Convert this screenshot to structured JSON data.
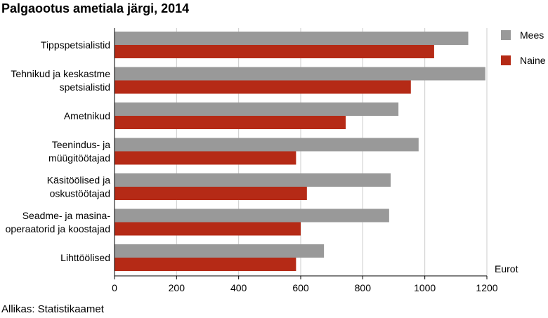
{
  "title": "Palgaootus ametiala järgi, 2014",
  "source": "Allikas: Statistikaamet",
  "colors": {
    "mees": "#999999",
    "naine": "#b52a16",
    "axis": "#000000",
    "grid": "#cccccc"
  },
  "chart_data": {
    "type": "bar",
    "orientation": "horizontal",
    "title": "Palgaootus ametiala järgi, 2014",
    "xlabel": "Eurot",
    "ylabel": "",
    "xlim": [
      0,
      1200
    ],
    "xticks": [
      0,
      200,
      400,
      600,
      800,
      1000,
      1200
    ],
    "grid": true,
    "legend": "top-right",
    "categories": [
      [
        "Tippspetsialistid"
      ],
      [
        "Tehnikud ja keskastme",
        "spetsialistid"
      ],
      [
        "Ametnikud"
      ],
      [
        "Teenindus- ja",
        "müügitöötajad"
      ],
      [
        "Käsitöölised ja",
        "oskustöötajad"
      ],
      [
        "Seadme- ja masina-",
        "operaatorid ja koostajad"
      ],
      [
        "Lihttöölised"
      ]
    ],
    "series": [
      {
        "name": "Mees",
        "color": "#999999",
        "values": [
          1140,
          1195,
          915,
          980,
          890,
          885,
          675
        ]
      },
      {
        "name": "Naine",
        "color": "#b52a16",
        "values": [
          1030,
          955,
          745,
          585,
          620,
          600,
          585
        ]
      }
    ]
  }
}
